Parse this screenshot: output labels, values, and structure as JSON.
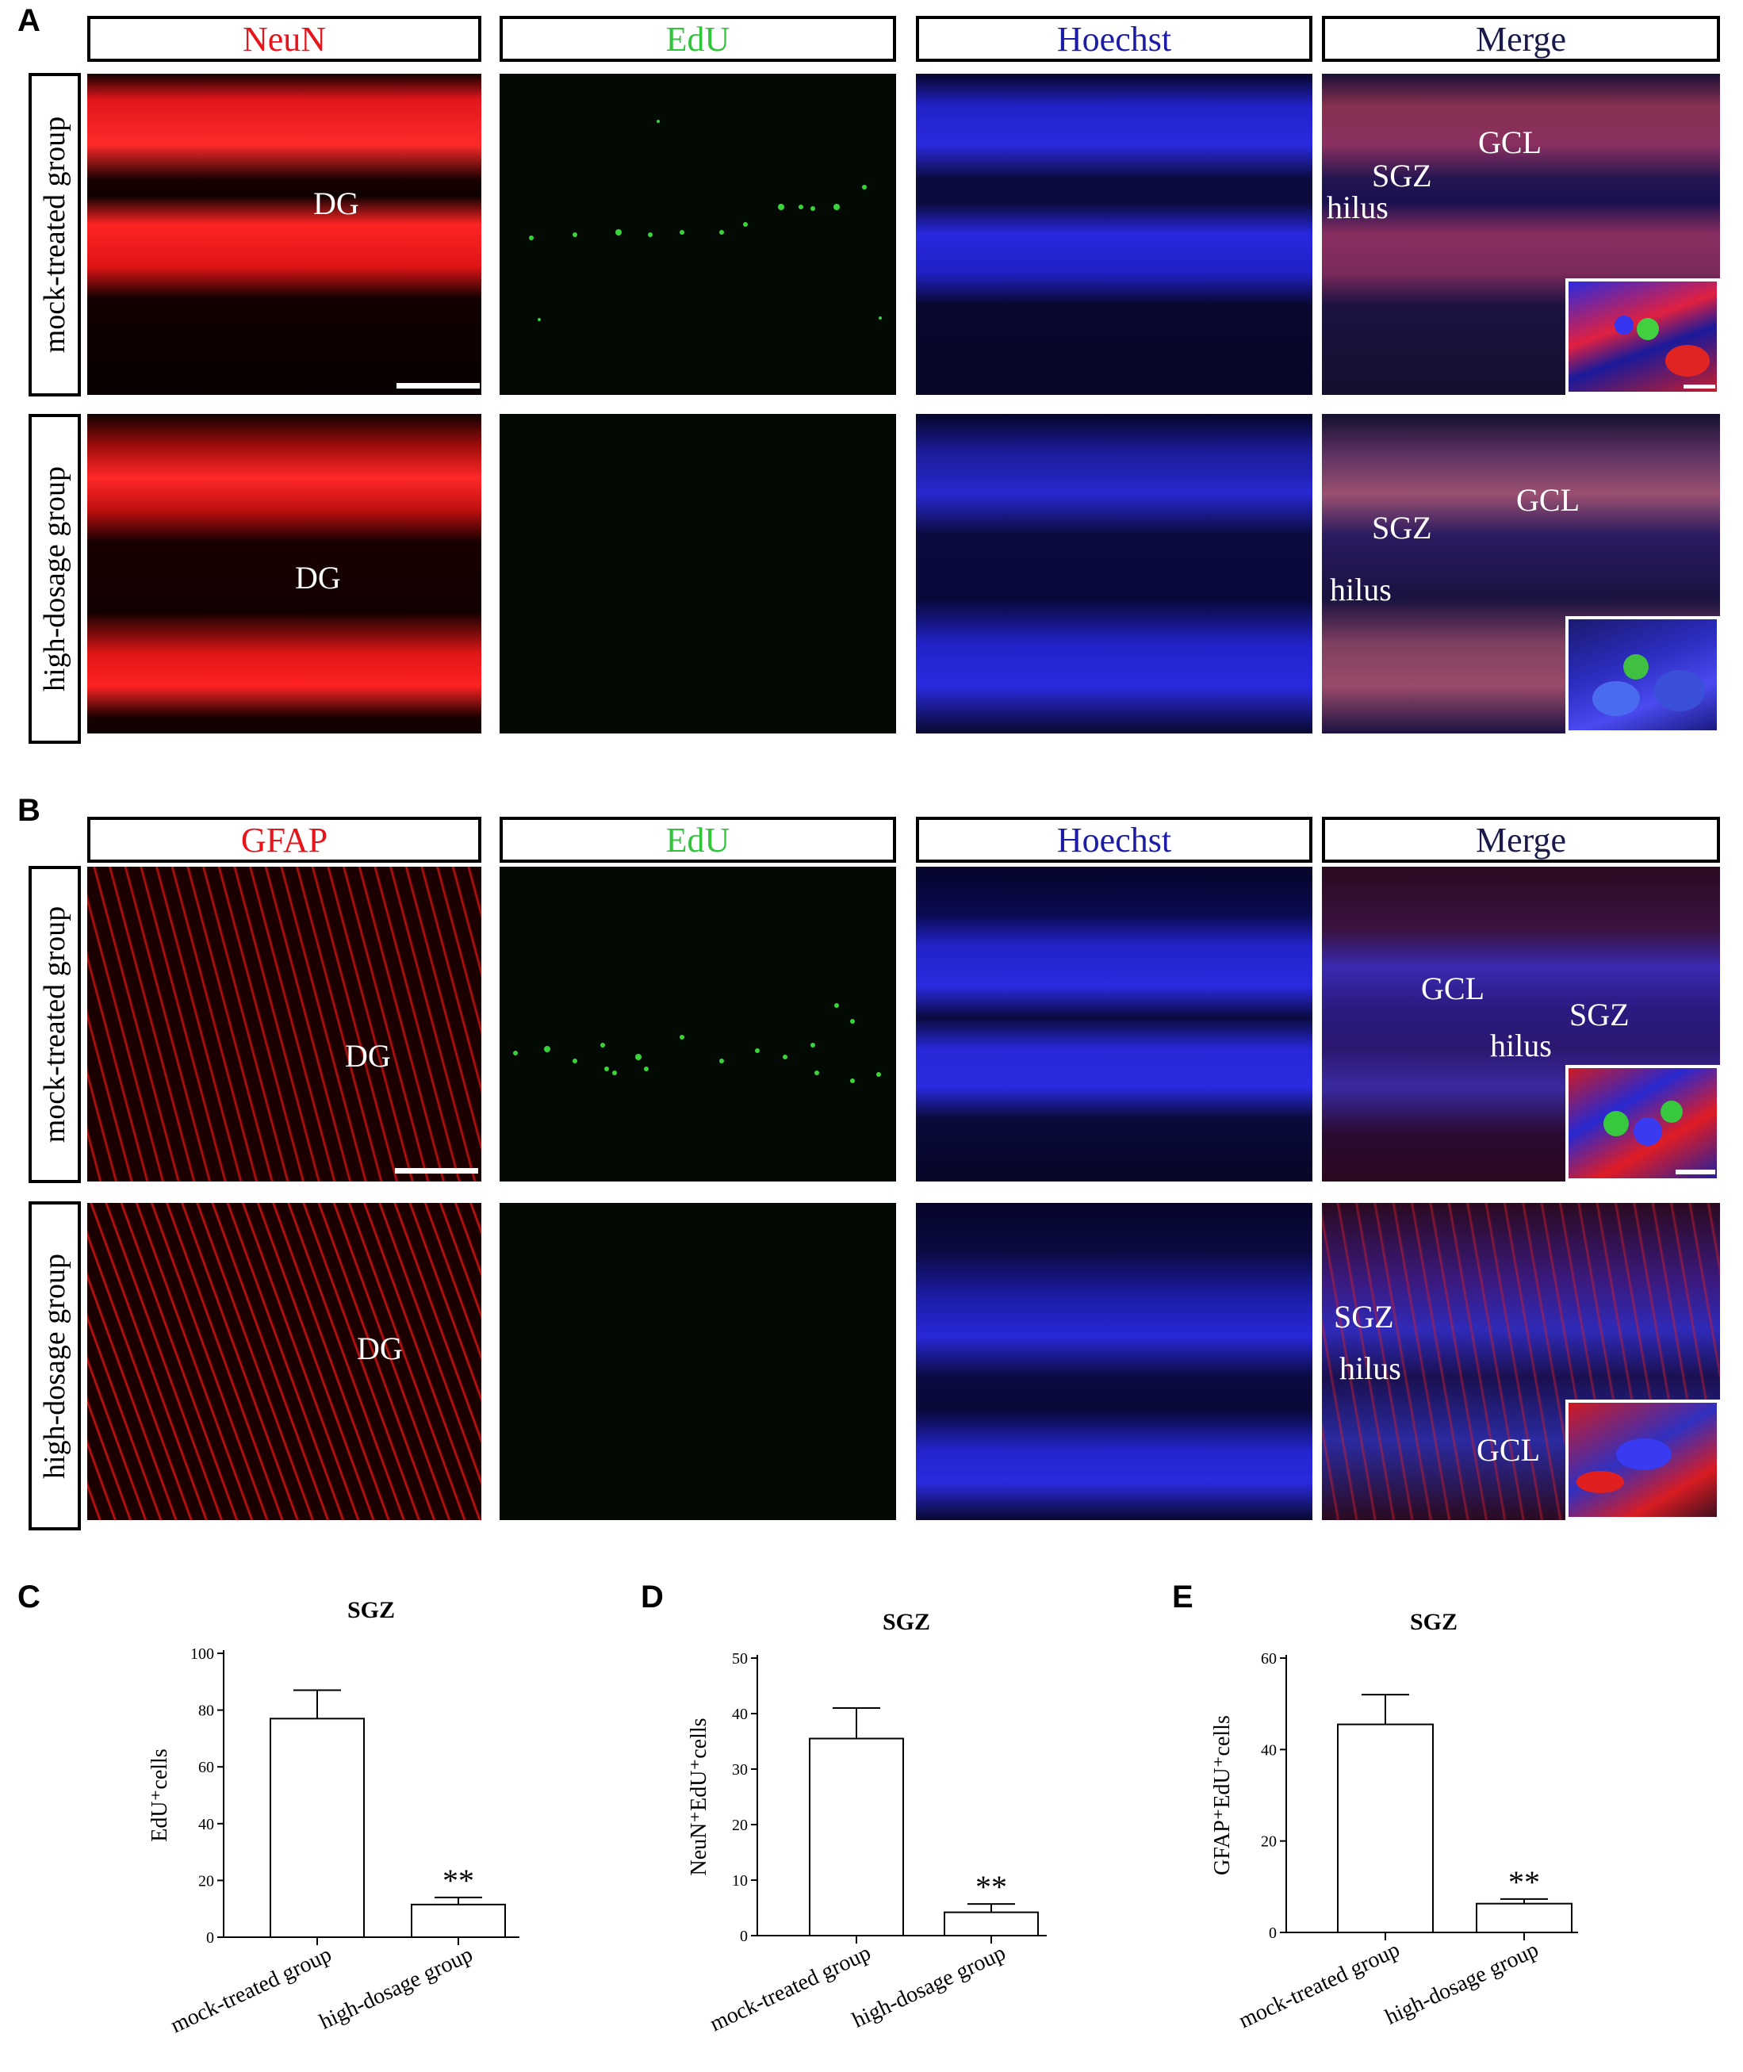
{
  "figure": {
    "panel_letters": {
      "A": "A",
      "B": "B",
      "C": "C",
      "D": "D",
      "E": "E"
    },
    "panel_A": {
      "headers": [
        {
          "text": "NeuN",
          "color": "#e8141b"
        },
        {
          "text": "EdU",
          "color": "#2fc43a"
        },
        {
          "text": "Hoechst",
          "color": "#1c1ca6"
        },
        {
          "text": "Merge",
          "color": "#1a1a4a"
        }
      ],
      "rows": [
        "mock-treated group",
        "high-dosage group"
      ],
      "labels": {
        "dg_mock": "DG",
        "dg_high": "DG",
        "merge_mock_sgz": "SGZ",
        "merge_mock_gcl": "GCL",
        "merge_mock_hilus": "hilus",
        "merge_high_sgz": "SGZ",
        "merge_high_gcl": "GCL",
        "merge_high_hilus": "hilus"
      }
    },
    "panel_B": {
      "headers": [
        {
          "text": "GFAP",
          "color": "#e8141b"
        },
        {
          "text": "EdU",
          "color": "#2fc43a"
        },
        {
          "text": "Hoechst",
          "color": "#1c1ca6"
        },
        {
          "text": "Merge",
          "color": "#1a1a4a"
        }
      ],
      "rows": [
        "mock-treated group",
        "high-dosage group"
      ],
      "labels": {
        "dg_mock": "DG",
        "dg_high": "DG",
        "merge_mock_gcl": "GCL",
        "merge_mock_sgz": "SGZ",
        "merge_mock_hilus": "hilus",
        "merge_high_sgz": "SGZ",
        "merge_high_hilus": "hilus",
        "merge_high_gcl": "GCL"
      }
    }
  },
  "chart_data": [
    {
      "type": "bar",
      "title": "SGZ",
      "ylabel": "EdU⁺cells",
      "categories": [
        "mock-treated group",
        "high-dosage group"
      ],
      "values": [
        77,
        11.5
      ],
      "errors": [
        10,
        2.5
      ],
      "significance": [
        "",
        "**"
      ],
      "ylim": [
        0,
        100
      ],
      "yticks": [
        0,
        20,
        40,
        60,
        80,
        100
      ]
    },
    {
      "type": "bar",
      "title": "SGZ",
      "ylabel": "NeuN⁺EdU⁺cells",
      "categories": [
        "mock-treated group",
        "high-dosage group"
      ],
      "values": [
        35.5,
        4.2
      ],
      "errors": [
        5.5,
        1.5
      ],
      "significance": [
        "",
        "**"
      ],
      "ylim": [
        0,
        50
      ],
      "yticks": [
        0,
        10,
        20,
        30,
        40,
        50
      ]
    },
    {
      "type": "bar",
      "title": "SGZ",
      "ylabel": "GFAP⁺EdU⁺cells",
      "categories": [
        "mock-treated group",
        "high-dosage group"
      ],
      "values": [
        45.5,
        6.3
      ],
      "errors": [
        6.5,
        1.0
      ],
      "significance": [
        "",
        "**"
      ],
      "ylim": [
        0,
        60
      ],
      "yticks": [
        0,
        20,
        40,
        60
      ]
    }
  ]
}
